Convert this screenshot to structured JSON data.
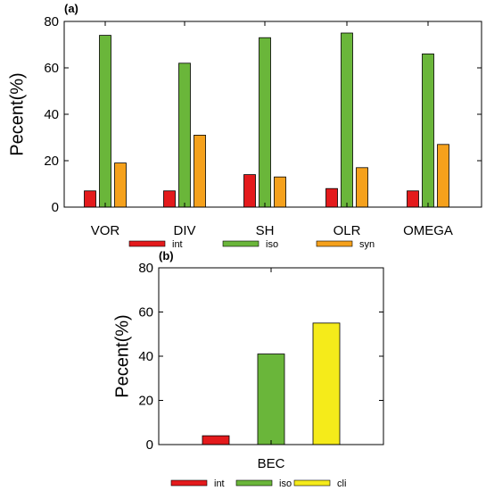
{
  "chart_data": [
    {
      "panel_label": "(a)",
      "type": "bar",
      "ylabel": "Pecent(%)",
      "ylim": [
        0,
        80
      ],
      "yticks": [
        0,
        20,
        40,
        60,
        80
      ],
      "categories": [
        "VOR",
        "DIV",
        "SH",
        "OLR",
        "OMEGA"
      ],
      "series": [
        {
          "name": "int",
          "color": "#e41a1c",
          "values": [
            7,
            7,
            14,
            8,
            7
          ]
        },
        {
          "name": "iso",
          "color": "#6ab63a",
          "values": [
            74,
            62,
            73,
            75,
            66
          ]
        },
        {
          "name": "syn",
          "color": "#f5a11c",
          "values": [
            19,
            31,
            13,
            17,
            27
          ]
        }
      ],
      "legend_position": "bottom"
    },
    {
      "panel_label": "(b)",
      "type": "bar",
      "ylabel": "Pecent(%)",
      "ylim": [
        0,
        80
      ],
      "yticks": [
        0,
        20,
        40,
        60,
        80
      ],
      "categories": [
        "BEC"
      ],
      "series": [
        {
          "name": "int",
          "color": "#e41a1c",
          "values": [
            4
          ]
        },
        {
          "name": "iso",
          "color": "#6ab63a",
          "values": [
            41
          ]
        },
        {
          "name": "cli",
          "color": "#f5eb1a",
          "values": [
            55
          ]
        }
      ],
      "legend_position": "bottom"
    }
  ]
}
